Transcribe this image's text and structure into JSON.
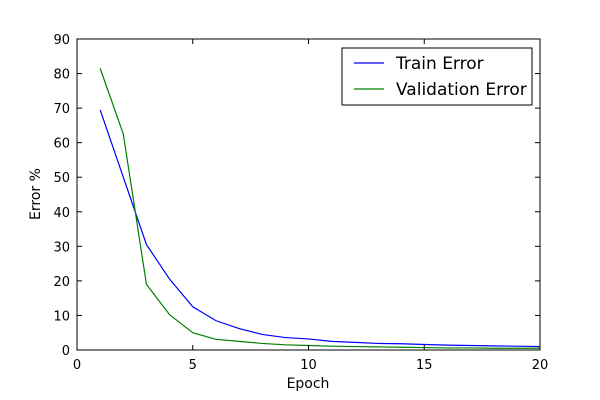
{
  "chart_data": {
    "type": "line",
    "title": "",
    "xlabel": "Epoch",
    "ylabel": "Error %",
    "xlim": [
      0,
      20
    ],
    "ylim": [
      0,
      90
    ],
    "xticks": [
      0,
      5,
      10,
      15,
      20
    ],
    "yticks": [
      0,
      10,
      20,
      30,
      40,
      50,
      60,
      70,
      80,
      90
    ],
    "grid": false,
    "legend_position": "top-right",
    "x": [
      1,
      2,
      3,
      4,
      5,
      6,
      7,
      8,
      9,
      10,
      11,
      12,
      13,
      14,
      15,
      16,
      17,
      18,
      19,
      20
    ],
    "series": [
      {
        "name": "Train Error",
        "color": "#0000ff",
        "values": [
          69.5,
          50.0,
          30.5,
          20.5,
          12.5,
          8.5,
          6.2,
          4.5,
          3.6,
          3.2,
          2.5,
          2.2,
          1.9,
          1.8,
          1.6,
          1.4,
          1.3,
          1.2,
          1.1,
          1.0
        ]
      },
      {
        "name": "Validation Error",
        "color": "#008000",
        "values": [
          81.5,
          62.5,
          19.0,
          10.2,
          5.0,
          3.1,
          2.5,
          1.9,
          1.5,
          1.3,
          1.1,
          1.0,
          0.9,
          0.8,
          0.7,
          0.6,
          0.6,
          0.5,
          0.5,
          0.5
        ]
      }
    ]
  }
}
